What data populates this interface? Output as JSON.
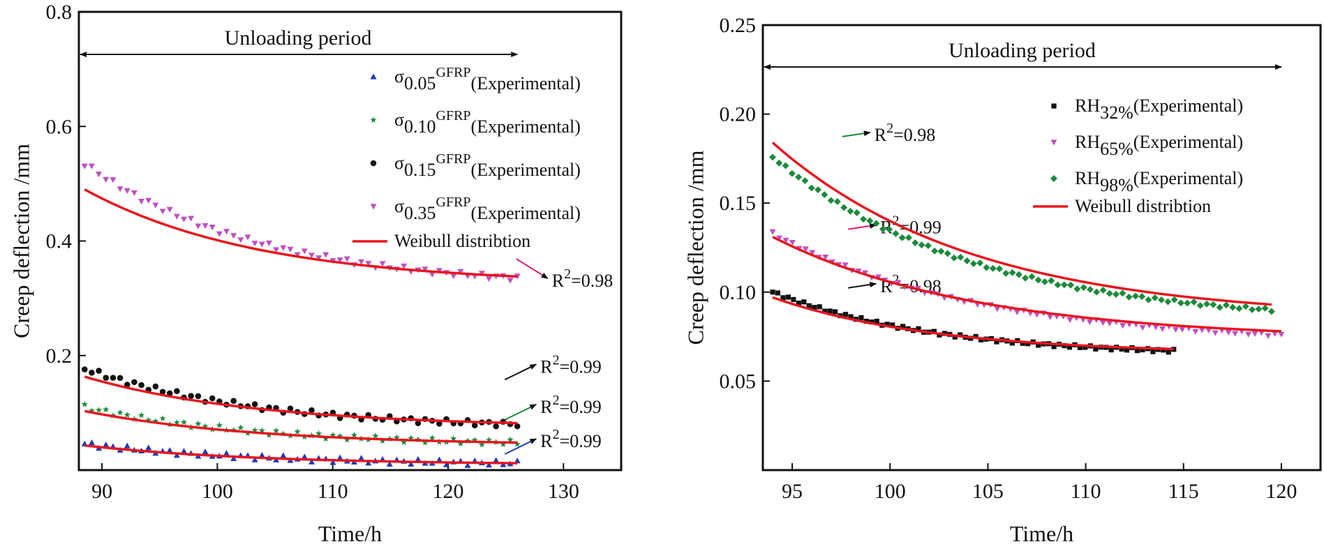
{
  "chart_data": [
    {
      "type": "scatter",
      "title": "",
      "xlabel": "Time/h",
      "ylabel": "Creep deflection /mm",
      "xlim": [
        88,
        135
      ],
      "ylim": [
        0,
        0.8
      ],
      "xticks": [
        90,
        100,
        110,
        120,
        130
      ],
      "yticks": [
        0.2,
        0.4,
        0.6,
        0.8
      ],
      "ytick_labels": [
        "0.2",
        "0.4",
        "0.6",
        "0.8"
      ],
      "grid": false,
      "legend_position": "top-right",
      "period": {
        "label": "Unloading period",
        "x_start": 88,
        "x_end": 126
      },
      "series": [
        {
          "name": "σ0.05GFRP(Experimental)",
          "sym": "σ",
          "sub": "0.05",
          "sup": "GFRP",
          "suffix": "(Experimental)",
          "marker": "triangle",
          "color": "#1f3bb3",
          "x": [
            88.5,
            126
          ],
          "y_start": 0.046,
          "y_end": 0.012,
          "fit_start": 0.043,
          "fit_end": 0.012,
          "r2": {
            "label": "R2=0.99",
            "main": "R",
            "sup": "2",
            "rest": "=0.99",
            "x": 128,
            "y": 0.04,
            "color": "#1f3bb3"
          }
        },
        {
          "name": "σ0.10GFRP(Experimental)",
          "sym": "σ",
          "sub": "0.10",
          "sup": "GFRP",
          "suffix": "(Experimental)",
          "marker": "star",
          "color": "#1a8a3a",
          "x": [
            88.5,
            126
          ],
          "y_start": 0.11,
          "y_end": 0.048,
          "fit_start": 0.103,
          "fit_end": 0.048,
          "r2": {
            "label": "R2=0.99",
            "main": "R",
            "sup": "2",
            "rest": "=0.99",
            "x": 128,
            "y": 0.1,
            "color": "#1a8a3a"
          }
        },
        {
          "name": "σ0.15GFRP(Experimental)",
          "sym": "σ",
          "sub": "0.15",
          "sup": "GFRP",
          "suffix": "(Experimental)",
          "marker": "circle",
          "color": "#111111",
          "x": [
            88.5,
            126
          ],
          "y_start": 0.177,
          "y_end": 0.08,
          "fit_start": 0.163,
          "fit_end": 0.082,
          "r2": {
            "label": "R2=0.99",
            "main": "R",
            "sup": "2",
            "rest": "=0.99",
            "x": 128,
            "y": 0.17,
            "color": "#111111"
          }
        },
        {
          "name": "σ0.35GFRP(Experimental)",
          "sym": "σ",
          "sub": "0.35",
          "sup": "GFRP",
          "suffix": "(Experimental)",
          "marker": "triangle-down",
          "color": "#c04fc0",
          "x": [
            88.5,
            126
          ],
          "y_start": 0.535,
          "y_end": 0.335,
          "fit_start": 0.49,
          "fit_end": 0.338,
          "r2": {
            "label": "R2=0.98",
            "main": "R",
            "sup": "2",
            "rest": "=0.98",
            "x": 129,
            "y": 0.32,
            "color": "#e0147a"
          }
        }
      ],
      "fit_legend": "Weibull distribtion",
      "fit_color": "#e8141c"
    },
    {
      "type": "scatter",
      "title": "",
      "xlabel": "Time/h",
      "ylabel": "Creep deflection /mm",
      "xlim": [
        93.5,
        122
      ],
      "ylim": [
        0,
        0.25
      ],
      "xticks": [
        95,
        100,
        105,
        110,
        115,
        120
      ],
      "yticks": [
        0.05,
        0.1,
        0.15,
        0.2,
        0.25
      ],
      "ytick_labels": [
        "0.05",
        "0.10",
        "0.15",
        "0.20",
        "0.25"
      ],
      "grid": false,
      "legend_position": "top-right",
      "period": {
        "label": "Unloading period",
        "x_start": 93.5,
        "x_end": 120
      },
      "series": [
        {
          "name": "RH32%(Experimental)",
          "sym": "RH",
          "sub": "32%",
          "sup": "",
          "suffix": "(Experimental)",
          "marker": "square",
          "color": "#111111",
          "x": [
            94,
            114.5
          ],
          "y_start": 0.1,
          "y_end": 0.067,
          "fit_start": 0.097,
          "fit_end": 0.068,
          "r2": {
            "label": "R2=0.98",
            "main": "R",
            "sup": "2",
            "rest": "=0.98",
            "x": 99.5,
            "y": 0.1,
            "color": "#111111"
          }
        },
        {
          "name": "RH65%(Experimental)",
          "sym": "RH",
          "sub": "65%",
          "sup": "",
          "suffix": "(Experimental)",
          "marker": "triangle-down",
          "color": "#c04fc0",
          "x": [
            94,
            120
          ],
          "y_start": 0.133,
          "y_end": 0.076,
          "fit_start": 0.131,
          "fit_end": 0.078,
          "r2": {
            "label": "R2=0.99",
            "main": "R",
            "sup": "2",
            "rest": "=0.99",
            "x": 99.5,
            "y": 0.133,
            "color": "#e0147a"
          }
        },
        {
          "name": "RH98%(Experimental)",
          "sym": "RH",
          "sub": "98%",
          "sup": "",
          "suffix": "(Experimental)",
          "marker": "diamond",
          "color": "#1a8a3a",
          "x": [
            94,
            119.5
          ],
          "y_start": 0.176,
          "y_end": 0.09,
          "fit_start": 0.184,
          "fit_end": 0.093,
          "r2": {
            "label": "R2=0.98",
            "main": "R",
            "sup": "2",
            "rest": "=0.98",
            "x": 99.2,
            "y": 0.185,
            "color": "#1a8a3a"
          }
        }
      ],
      "fit_legend": "Weibull distribtion",
      "fit_color": "#e8141c"
    }
  ]
}
